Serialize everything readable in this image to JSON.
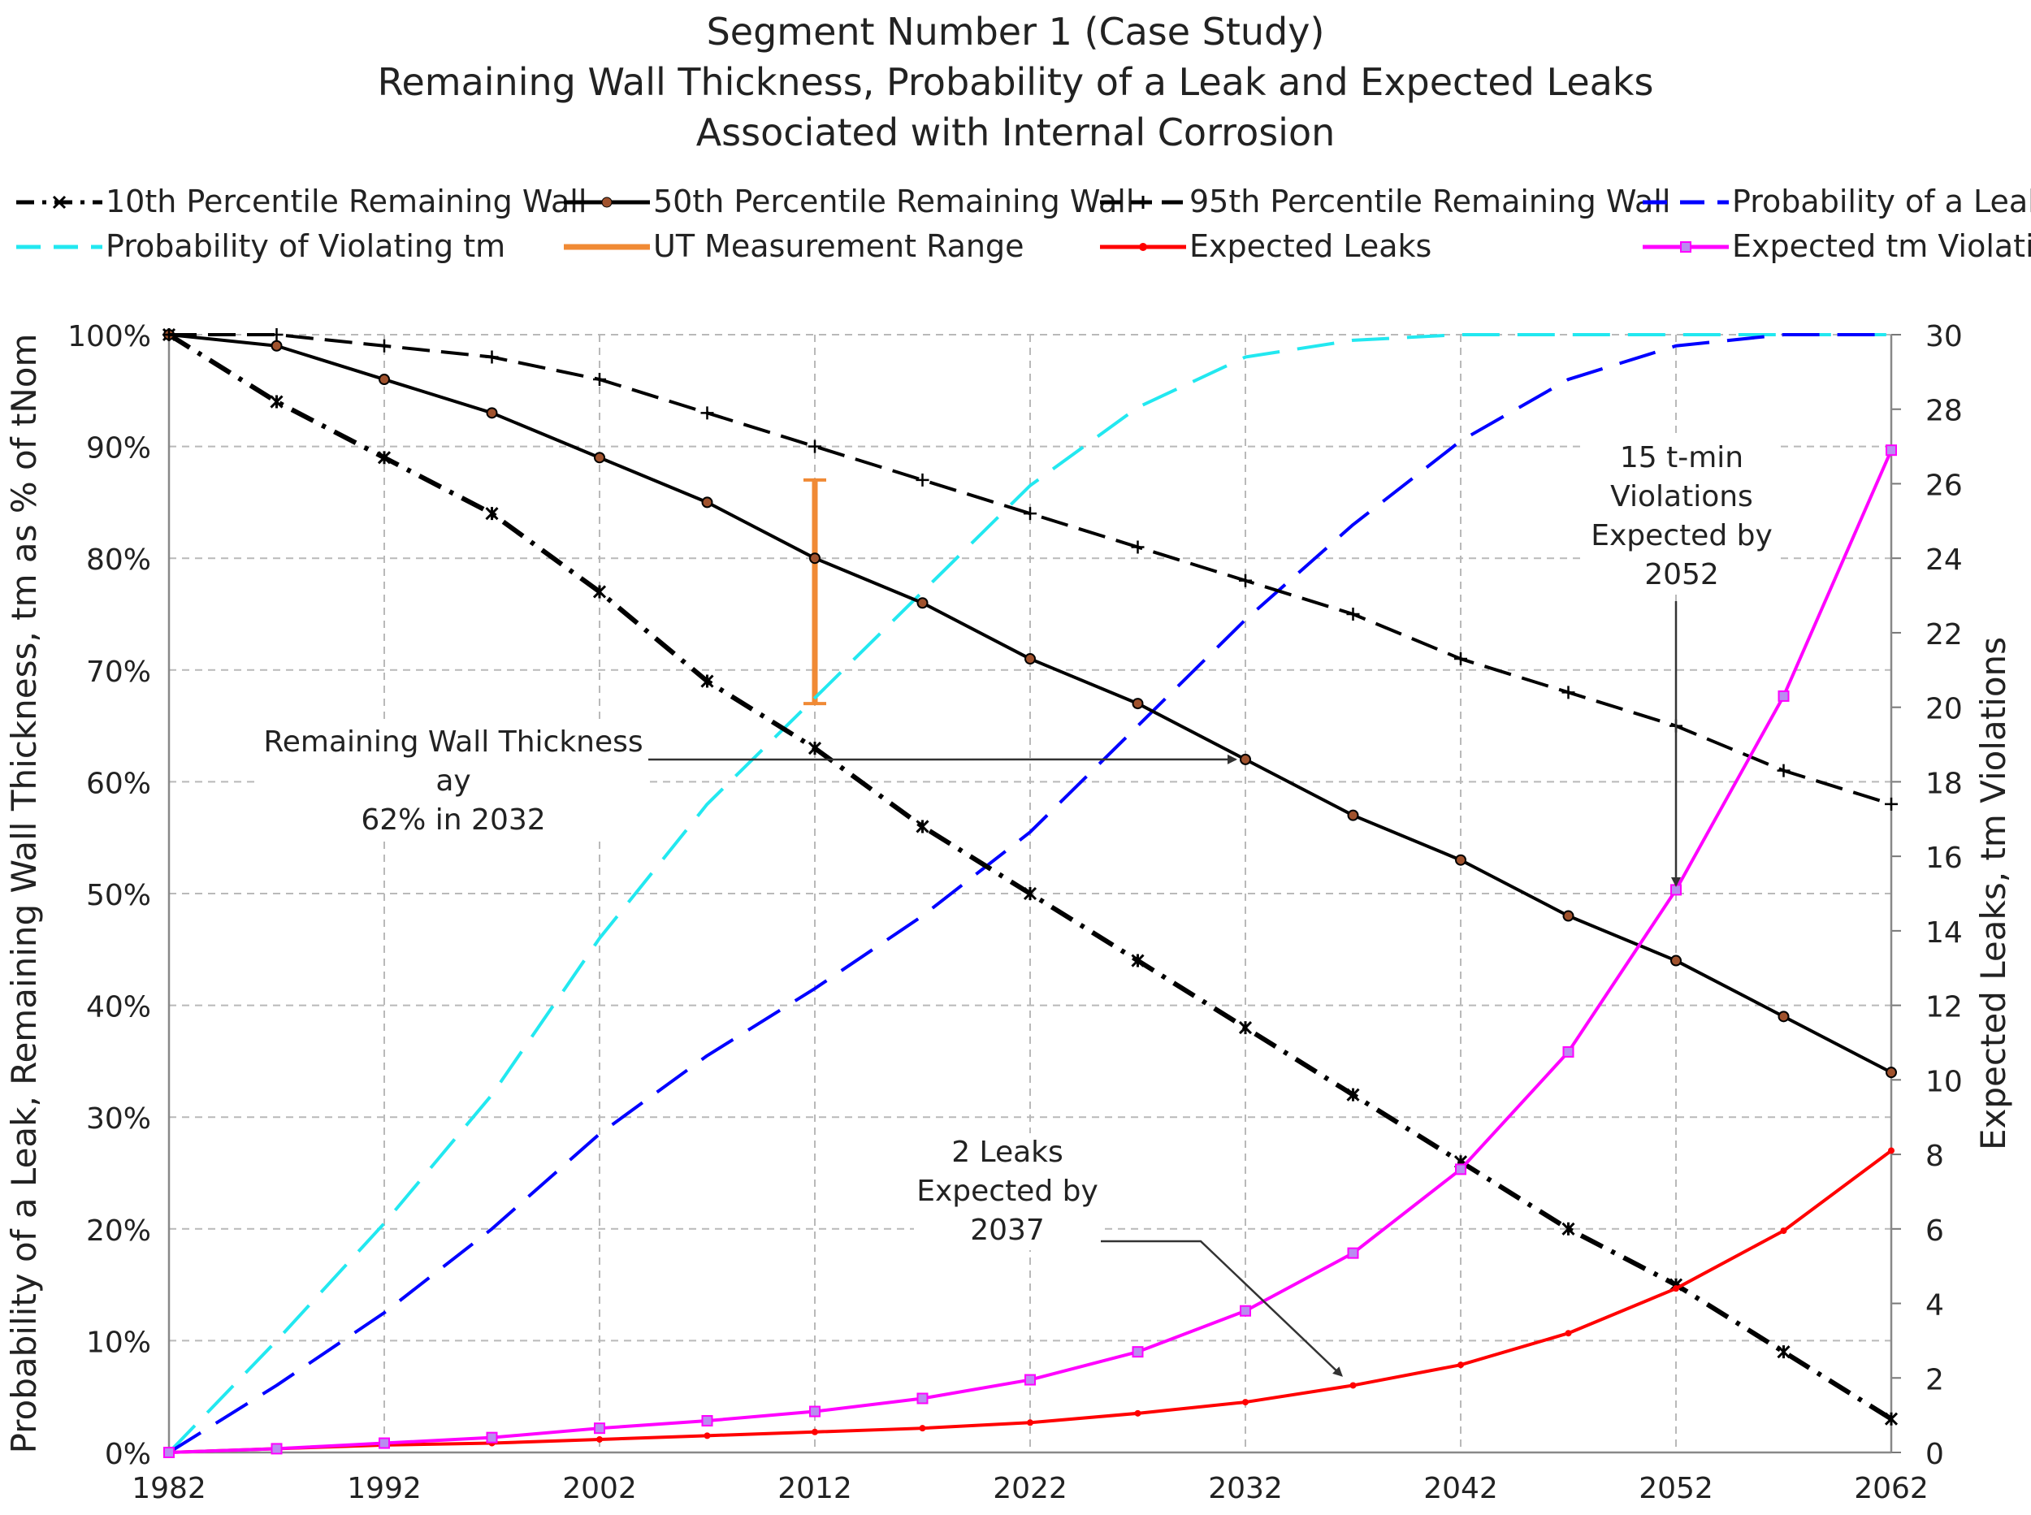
{
  "title": [
    "Segment Number 1 (Case Study)",
    "Remaining Wall Thickness, Probability of a Leak and Expected Leaks",
    "Associated with Internal Corrosion"
  ],
  "chart_data": {
    "type": "line",
    "x": [
      1982,
      1987,
      1992,
      1997,
      2002,
      2007,
      2012,
      2017,
      2022,
      2027,
      2032,
      2037,
      2042,
      2047,
      2052,
      2057,
      2062
    ],
    "xticks": [
      "1982",
      "1992",
      "2002",
      "2012",
      "2022",
      "2032",
      "2042",
      "2052",
      "2062"
    ],
    "xlim": [
      1982,
      2062
    ],
    "ylabel_left": "Probability of a Leak, Remaining Wall Thickness, tm as % of tNom",
    "ylabel_right": "Expected Leaks, tm Violations",
    "ylim_left": [
      0,
      100
    ],
    "ylim_right": [
      0,
      30
    ],
    "yticks_left": [
      "0%",
      "10%",
      "20%",
      "30%",
      "40%",
      "50%",
      "60%",
      "70%",
      "80%",
      "90%",
      "100%"
    ],
    "yticks_right": [
      "0",
      "2",
      "4",
      "6",
      "8",
      "10",
      "12",
      "14",
      "16",
      "18",
      "20",
      "22",
      "24",
      "26",
      "28",
      "30"
    ],
    "grid": true,
    "series": [
      {
        "name": "10th Percentile Remaining Wall",
        "axis": "left",
        "color": "#000000",
        "style": "dashdot",
        "marker": "x",
        "values": [
          100,
          94,
          89,
          84,
          77,
          69,
          63,
          56,
          50,
          44,
          38,
          32,
          26,
          20,
          15,
          9,
          3
        ]
      },
      {
        "name": "50th Percentile Remaining Wall",
        "axis": "left",
        "color": "#000000",
        "style": "solid",
        "marker": "circle",
        "values": [
          100,
          99,
          96,
          93,
          89,
          85,
          80,
          76,
          71,
          67,
          62,
          57,
          53,
          48,
          44,
          39,
          34
        ]
      },
      {
        "name": "95th Percentile Remaining Wall",
        "axis": "left",
        "color": "#000000",
        "style": "dashed",
        "marker": "plus",
        "values": [
          100,
          100,
          99,
          98,
          96,
          93,
          90,
          87,
          84,
          81,
          78,
          75,
          71,
          68,
          65,
          61,
          58
        ]
      },
      {
        "name": "Probability of a Leak",
        "axis": "left",
        "color": "#0000ff",
        "style": "longdash",
        "marker": "none",
        "values": [
          0,
          6,
          12.5,
          20,
          28.5,
          35.5,
          41.5,
          48,
          55.5,
          65,
          74.5,
          83,
          90.5,
          96,
          99,
          100,
          100
        ]
      },
      {
        "name": "Probability of Violating tm",
        "axis": "left",
        "color": "#22e8f0",
        "style": "longdash",
        "marker": "none",
        "values": [
          0,
          10,
          20.5,
          32,
          46,
          58,
          67.5,
          77,
          86.5,
          93.5,
          98,
          99.5,
          100,
          100,
          100,
          100,
          100
        ]
      },
      {
        "name": "Expected Leaks",
        "axis": "right",
        "color": "#ff0000",
        "style": "solid",
        "marker": "dot",
        "values": [
          0,
          0.1,
          0.2,
          0.25,
          0.35,
          0.45,
          0.55,
          0.65,
          0.8,
          1.05,
          1.35,
          1.8,
          2.35,
          3.2,
          4.4,
          5.95,
          8.1
        ]
      },
      {
        "name": "Expected tm Violations",
        "axis": "right",
        "color": "#ff00ff",
        "style": "solid",
        "marker": "square",
        "values": [
          0,
          0.1,
          0.25,
          0.4,
          0.65,
          0.85,
          1.1,
          1.45,
          1.95,
          2.7,
          3.8,
          5.35,
          7.6,
          10.75,
          15.1,
          20.3,
          26.9
        ]
      }
    ],
    "ut_range": {
      "name": "UT Measurement Range",
      "year": 2012,
      "low": 67,
      "high": 87,
      "color": "#f08a35"
    },
    "annotations": [
      {
        "id": "wall",
        "lines": [
          "Remaining Wall Thickness ay",
          "62% in 2032"
        ],
        "target_year": 2032,
        "target_value": 62,
        "axis": "left"
      },
      {
        "id": "violations",
        "lines": [
          "15 t-min",
          "Violations",
          "Expected by",
          "2052"
        ],
        "target_year": 2052,
        "target_value": 15,
        "axis": "right"
      },
      {
        "id": "leaks",
        "lines": [
          "2 Leaks",
          "Expected by",
          "2037"
        ],
        "target_year": 2037,
        "target_value": 1.8,
        "axis": "right"
      }
    ]
  }
}
